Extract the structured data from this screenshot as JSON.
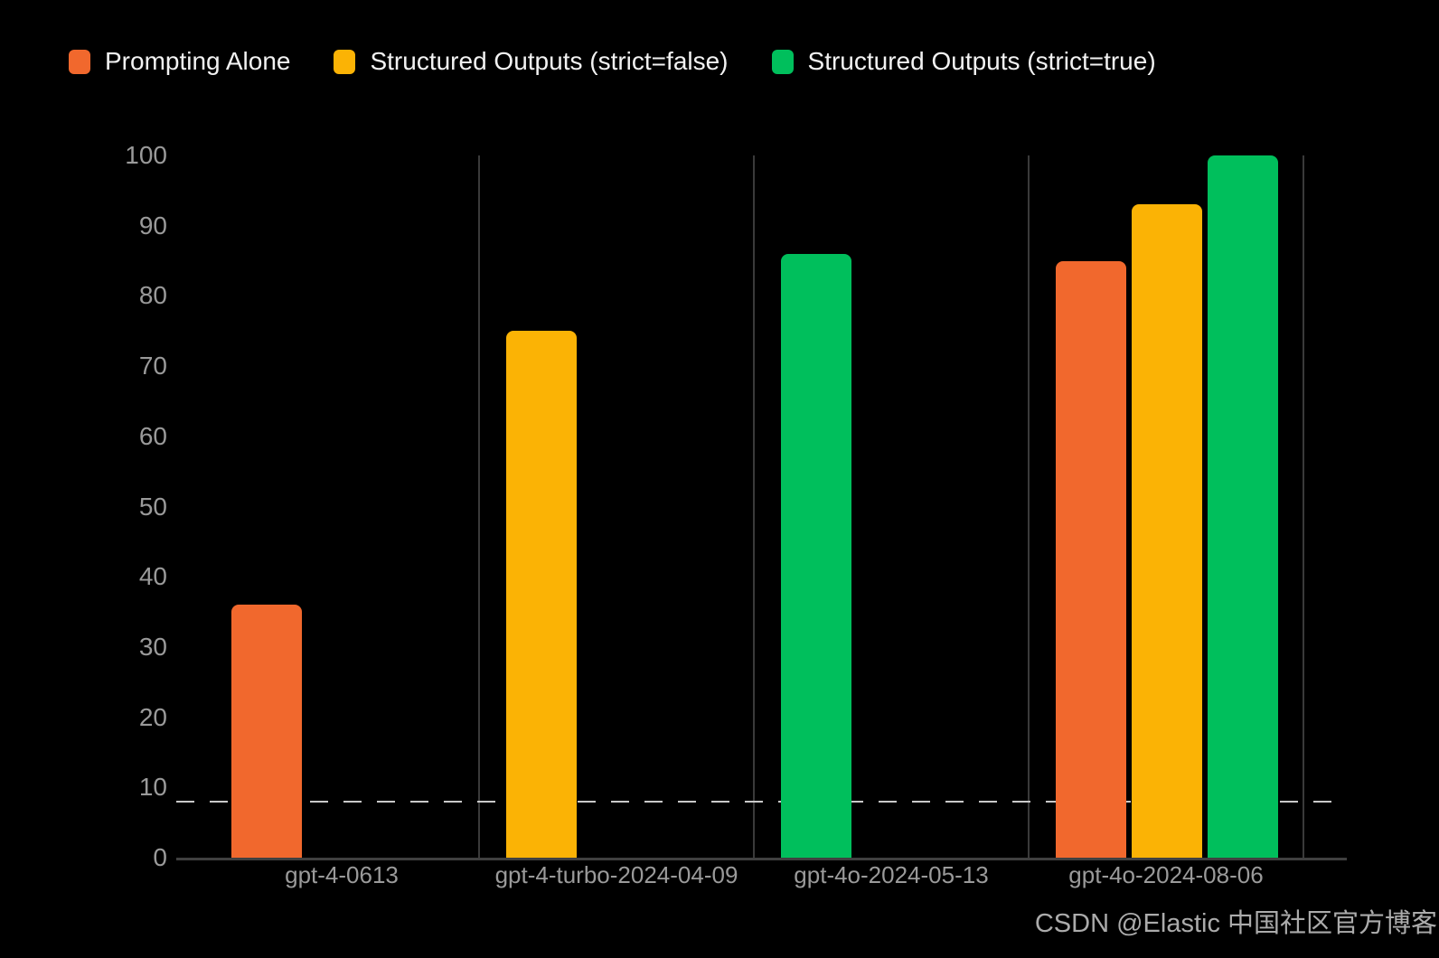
{
  "colors": {
    "background": "#000000",
    "orange": "#F1682D",
    "yellow": "#FBB305",
    "green": "#00BF5C",
    "grid_line": "#3A3A3A",
    "axis_line": "#404040",
    "dashed_line": "#C9C9C9",
    "tick_label": "#9A9A9A",
    "legend_text": "#F2F2F2",
    "watermark_text": "#ABABAB"
  },
  "legend": {
    "items": [
      {
        "label": "Prompting Alone",
        "color": "#F1682D"
      },
      {
        "label": "Structured Outputs (strict=false)",
        "color": "#FBB305"
      },
      {
        "label": "Structured Outputs (strict=true)",
        "color": "#00BF5C"
      }
    ]
  },
  "chart_data": {
    "type": "bar",
    "title": "",
    "xlabel": "",
    "ylabel": "",
    "categories": [
      "gpt-4-0613",
      "gpt-4-turbo-2024-04-09",
      "gpt-4o-2024-05-13",
      "gpt-4o-2024-08-06"
    ],
    "series": [
      {
        "name": "Prompting Alone",
        "color": "#F1682D",
        "values": [
          36,
          null,
          null,
          85
        ]
      },
      {
        "name": "Structured Outputs (strict=false)",
        "color": "#FBB305",
        "values": [
          null,
          75,
          null,
          93
        ]
      },
      {
        "name": "Structured Outputs (strict=true)",
        "color": "#00BF5C",
        "values": [
          null,
          null,
          86,
          100
        ]
      }
    ],
    "ylim": [
      0,
      100
    ],
    "yticks": [
      0,
      10,
      20,
      30,
      40,
      50,
      60,
      70,
      80,
      90,
      100
    ],
    "reference_line_y": 8,
    "reference_line_style": "dashed",
    "grid": "vertical-category-separators",
    "legend_position": "top-left",
    "background": "black"
  },
  "watermark": {
    "text": "CSDN @Elastic 中国社区官方博客"
  }
}
